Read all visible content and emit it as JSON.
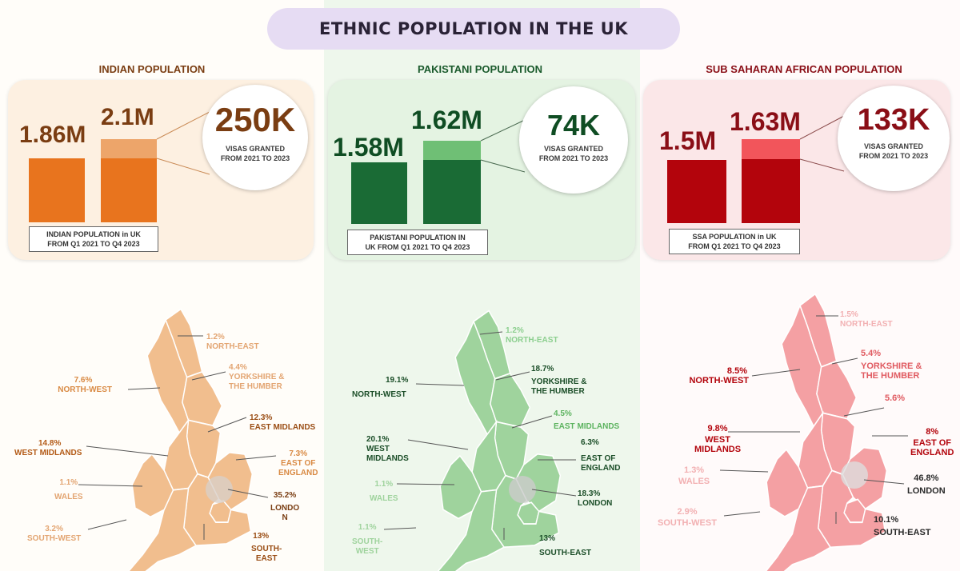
{
  "title": "ETHNIC POPULATION IN THE UK",
  "colors": {
    "indian": "#e8741e",
    "pakistani": "#1a6b35",
    "ssa": "#b3040c"
  },
  "panels": {
    "indian": {
      "heading": "INDIAN POPULATION",
      "value_2021": "1.86M",
      "value_2023": "2.1M",
      "visas_value": "250K",
      "visas_text_1": "VISAS GRANTED",
      "visas_text_2": "FROM 2021 TO 2023",
      "caption_1": "INDIAN POPULATION in UK",
      "caption_2": "FROM Q1 2021 TO Q4 2023"
    },
    "pakistani": {
      "heading": "PAKISTANI POPULATION",
      "value_2021": "1.58M",
      "value_2023": "1.62M",
      "visas_value": "74K",
      "visas_text_1": "VISAS GRANTED",
      "visas_text_2": "FROM 2021 TO 2023",
      "caption_1": "PAKISTANI POPULATION IN",
      "caption_2": "UK FROM Q1 2021 TO Q4 2023"
    },
    "ssa": {
      "heading": "SUB SAHARAN AFRICAN POPULATION",
      "value_2021": "1.5M",
      "value_2023": "1.63M",
      "visas_value": "133K",
      "visas_text_1": "VISAS GRANTED",
      "visas_text_2": "FROM 2021 TO 2023",
      "caption_1": "SSA POPULATION in UK",
      "caption_2": "FROM Q1 2021 TO Q4 2023"
    }
  },
  "regions": {
    "indian": {
      "north_east": [
        "1.2%",
        "NORTH-EAST"
      ],
      "yorkshire": [
        "4.4%",
        "YORKSHIRE &",
        "THE HUMBER"
      ],
      "north_west": [
        "7.6%",
        "NORTH-WEST"
      ],
      "east_midlands": [
        "12.3%",
        "EAST MIDLANDS"
      ],
      "west_midlands": [
        "14.8%",
        "WEST MIDLANDS"
      ],
      "east_of_england": [
        "7.3%",
        "EAST OF",
        "ENGLAND"
      ],
      "wales": [
        "1.1%",
        "WALES"
      ],
      "london": [
        "35.2%",
        "LONDO",
        "N"
      ],
      "south_west": [
        "3.2%",
        "SOUTH-WEST"
      ],
      "south_east": [
        "13%",
        "SOUTH-",
        "EAST"
      ]
    },
    "pakistani": {
      "north_east": [
        "1.2%",
        "NORTH-EAST"
      ],
      "yorkshire": [
        "18.7%",
        "YORKSHIRE &",
        "THE HUMBER"
      ],
      "north_west": [
        "19.1%",
        "NORTH-WEST"
      ],
      "east_midlands": [
        "4.5%",
        "EAST MIDLANDS"
      ],
      "west_midlands": [
        "20.1%",
        "WEST",
        "MIDLANDS"
      ],
      "east_of_england": [
        "6.3%",
        "EAST OF",
        "ENGLAND"
      ],
      "wales": [
        "1.1%",
        "WALES"
      ],
      "london": [
        "18.3%",
        "LONDON"
      ],
      "south_west": [
        "1.1%",
        "SOUTH-",
        "WEST"
      ],
      "south_east": [
        "13%",
        "SOUTH-EAST"
      ]
    },
    "ssa": {
      "north_east": [
        "1.5%",
        "NORTH-EAST"
      ],
      "yorkshire": [
        "5.4%",
        "YORKSHIRE &",
        "THE HUMBER"
      ],
      "north_west": [
        "8.5%",
        "NORTH-WEST"
      ],
      "east_midlands": [
        "5.6%"
      ],
      "west_midlands": [
        "9.8%",
        "WEST",
        "MIDLANDS"
      ],
      "east_of_england": [
        "8%",
        "EAST OF",
        "ENGLAND"
      ],
      "wales": [
        "1.3%",
        "WALES"
      ],
      "london": [
        "46.8%",
        "LONDON"
      ],
      "south_west": [
        "2.9%",
        "SOUTH-WEST"
      ],
      "south_east": [
        "10.1%",
        "SOUTH-EAST"
      ]
    }
  }
}
